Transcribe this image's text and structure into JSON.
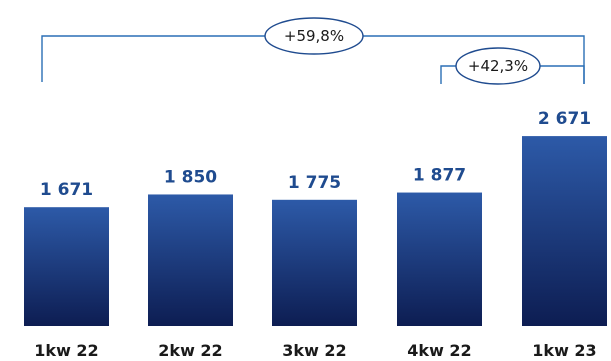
{
  "chart_data": {
    "type": "bar",
    "categories": [
      "1kw 22",
      "2kw 22",
      "3kw 22",
      "4kw 22",
      "1kw 23"
    ],
    "values": [
      1671,
      1850,
      1775,
      1877,
      2671
    ],
    "value_labels": [
      "1 671",
      "1 850",
      "1 775",
      "1 877",
      "2 671"
    ],
    "growth_annotations": [
      {
        "label": "+59,8%",
        "from_category": "1kw 22",
        "to_category": "1kw 23"
      },
      {
        "label": "+42,3%",
        "from_category": "4kw 22",
        "to_category": "1kw 23"
      }
    ],
    "title": "",
    "xlabel": "",
    "ylabel": "",
    "grid": false,
    "legend": "none"
  },
  "colors": {
    "bar_top": "#2d5aa8",
    "bar_bottom": "#0d1d52",
    "value_text": "#1f4b8f",
    "bracket": "#2a6fb5",
    "ellipse_stroke": "#1f4b8f",
    "category_text": "#1a1a1a"
  }
}
